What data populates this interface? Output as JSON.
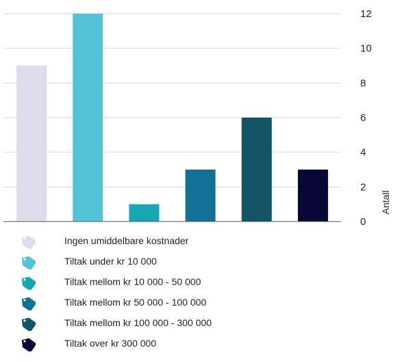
{
  "chart_data": {
    "type": "bar",
    "categories": [
      "Ingen umiddelbare kostnader",
      "Tiltak under kr 10 000",
      "Tiltak mellom kr 10 000 - 50 000",
      "Tiltak mellom kr 50 000 - 100 000",
      "Tiltak mellom kr 100 000 - 300 000",
      "Tiltak over kr  300 000"
    ],
    "values": [
      9,
      12,
      1,
      3,
      6,
      3
    ],
    "colors": [
      "#dcdcea",
      "#55c3d6",
      "#17a6b4",
      "#147196",
      "#125564",
      "#070637"
    ],
    "title": "",
    "xlabel": "",
    "ylabel": "Antall",
    "ylim": [
      0,
      12
    ],
    "yticks": [
      0,
      2,
      4,
      6,
      8,
      10,
      12
    ],
    "y_axis_side": "right",
    "grid": true,
    "legend_position": "bottom-left",
    "legend_icons": [
      "tag-icon",
      "tag-icon",
      "tag-icon",
      "tag-icon",
      "tag-icon",
      "tag-icon"
    ]
  }
}
